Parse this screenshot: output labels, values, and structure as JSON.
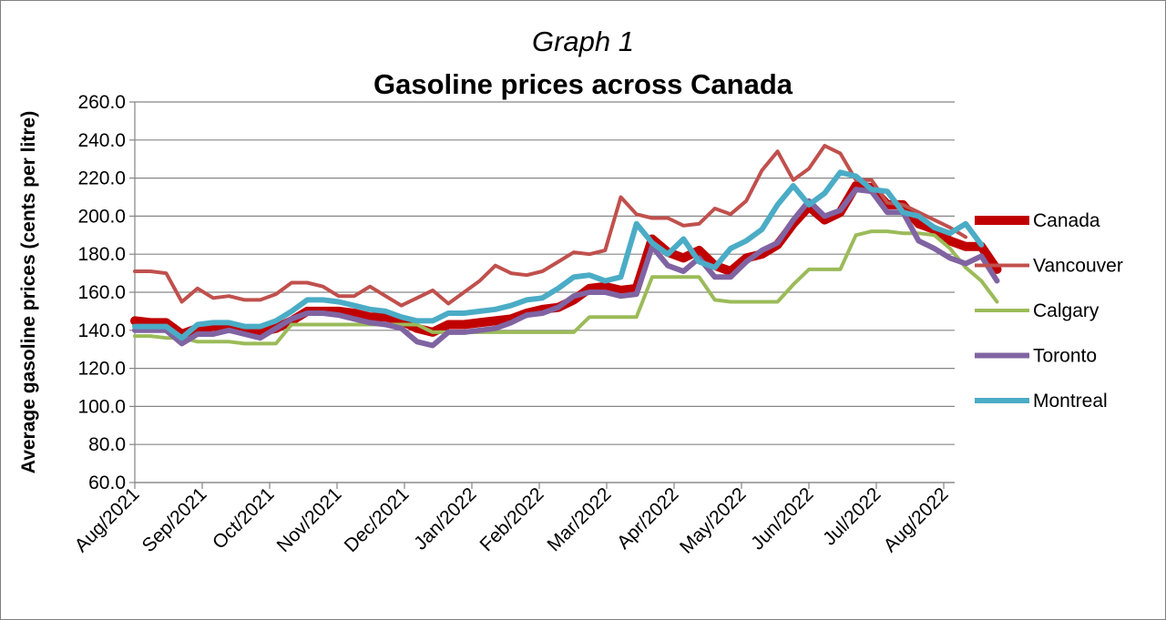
{
  "chart_data": {
    "type": "line",
    "title_prefix": "Graph 1",
    "title": "Gasoline prices across Canada",
    "xlabel": "",
    "ylabel": "Average gasoline prices (cents per litre)",
    "ylim": [
      60,
      260
    ],
    "yticks": [
      "60.0",
      "80.0",
      "100.0",
      "120.0",
      "140.0",
      "160.0",
      "180.0",
      "200.0",
      "220.0",
      "240.0",
      "260.0"
    ],
    "xticks": [
      "Aug/2021",
      "Sep/2021",
      "Oct/2021",
      "Nov/2021",
      "Dec/2021",
      "Jan/2022",
      "Feb/2022",
      "Mar/2022",
      "Apr/2022",
      "May/2022",
      "Jun/2022",
      "Jul/2022",
      "Aug/2022"
    ],
    "grid": "horizontal",
    "legend": "right",
    "series": [
      {
        "name": "Canada",
        "color": "#c00000",
        "width": 10,
        "values": [
          145,
          144,
          144,
          138,
          141,
          142,
          142,
          140,
          139,
          141,
          145,
          150,
          150,
          150,
          149,
          147,
          147,
          145,
          141,
          139,
          143,
          143,
          144,
          145,
          146,
          149,
          151,
          152,
          156,
          162,
          163,
          161,
          162,
          188,
          181,
          178,
          182,
          174,
          171,
          178,
          180,
          185,
          196,
          205,
          198,
          202,
          216,
          215,
          206,
          206,
          196,
          193,
          187,
          184,
          184,
          172
        ]
      },
      {
        "name": "Vancouver",
        "color": "#c0504d",
        "width": 4,
        "values": [
          171,
          171,
          170,
          155,
          162,
          157,
          158,
          156,
          156,
          159,
          165,
          165,
          163,
          158,
          158,
          163,
          158,
          153,
          157,
          161,
          154,
          160,
          166,
          174,
          170,
          169,
          171,
          176,
          181,
          180,
          182,
          210,
          201,
          199,
          199,
          195,
          196,
          204,
          201,
          208,
          224,
          234,
          219,
          225,
          237,
          233,
          219,
          219,
          207,
          206,
          202,
          198,
          194,
          189
        ]
      },
      {
        "name": "Calgary",
        "color": "#9bbb59",
        "width": 4,
        "values": [
          137,
          137,
          136,
          136,
          134,
          134,
          134,
          133,
          133,
          133,
          143,
          143,
          143,
          143,
          143,
          143,
          143,
          143,
          143,
          139,
          139,
          139,
          139,
          139,
          139,
          139,
          139,
          139,
          139,
          147,
          147,
          147,
          147,
          168,
          168,
          168,
          168,
          156,
          155,
          155,
          155,
          155,
          164,
          172,
          172,
          172,
          190,
          192,
          192,
          191,
          191,
          190,
          183,
          173,
          166,
          155
        ]
      },
      {
        "name": "Toronto",
        "color": "#8064a2",
        "width": 6,
        "values": [
          140,
          140,
          140,
          133,
          138,
          138,
          140,
          138,
          136,
          141,
          146,
          149,
          149,
          148,
          146,
          144,
          143,
          141,
          134,
          132,
          139,
          139,
          140,
          141,
          144,
          148,
          149,
          152,
          158,
          160,
          160,
          158,
          159,
          184,
          174,
          171,
          178,
          168,
          168,
          176,
          182,
          186,
          198,
          208,
          200,
          203,
          214,
          213,
          202,
          202,
          187,
          183,
          178,
          175,
          179,
          166
        ]
      },
      {
        "name": "Montreal",
        "color": "#4bacc6",
        "width": 6,
        "values": [
          142,
          142,
          142,
          136,
          143,
          144,
          144,
          142,
          142,
          145,
          150,
          156,
          156,
          155,
          153,
          151,
          150,
          147,
          145,
          145,
          149,
          149,
          150,
          151,
          153,
          156,
          157,
          162,
          168,
          169,
          166,
          168,
          196,
          186,
          180,
          188,
          176,
          173,
          183,
          187,
          193,
          206,
          216,
          206,
          212,
          223,
          221,
          214,
          213,
          202,
          200,
          194,
          191,
          196,
          185
        ]
      }
    ]
  }
}
